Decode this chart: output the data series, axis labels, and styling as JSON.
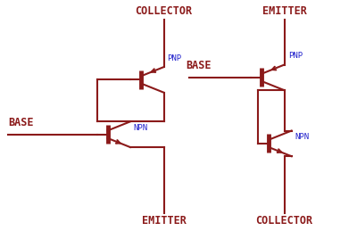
{
  "line_color": "#8B1A1A",
  "label_color": "#8B1A1A",
  "type_color": "#2222CC",
  "bg_color": "#FFFFFF",
  "lw": 1.5,
  "bar_lw": 3.5,
  "fig_w": 4.0,
  "fig_h": 2.59,
  "dpi": 100,
  "labels": {
    "left_base": "BASE",
    "left_collector": "COLLECTOR",
    "left_emitter": "EMITTER",
    "right_base": "BASE",
    "right_emitter": "EMITTER",
    "right_collector": "COLLECTOR",
    "left_pnp": "PNP",
    "left_npn": "NPN",
    "right_pnp": "PNP",
    "right_npn": "NPN"
  },
  "label_fontsize": 8.5,
  "type_fontsize": 6.5
}
